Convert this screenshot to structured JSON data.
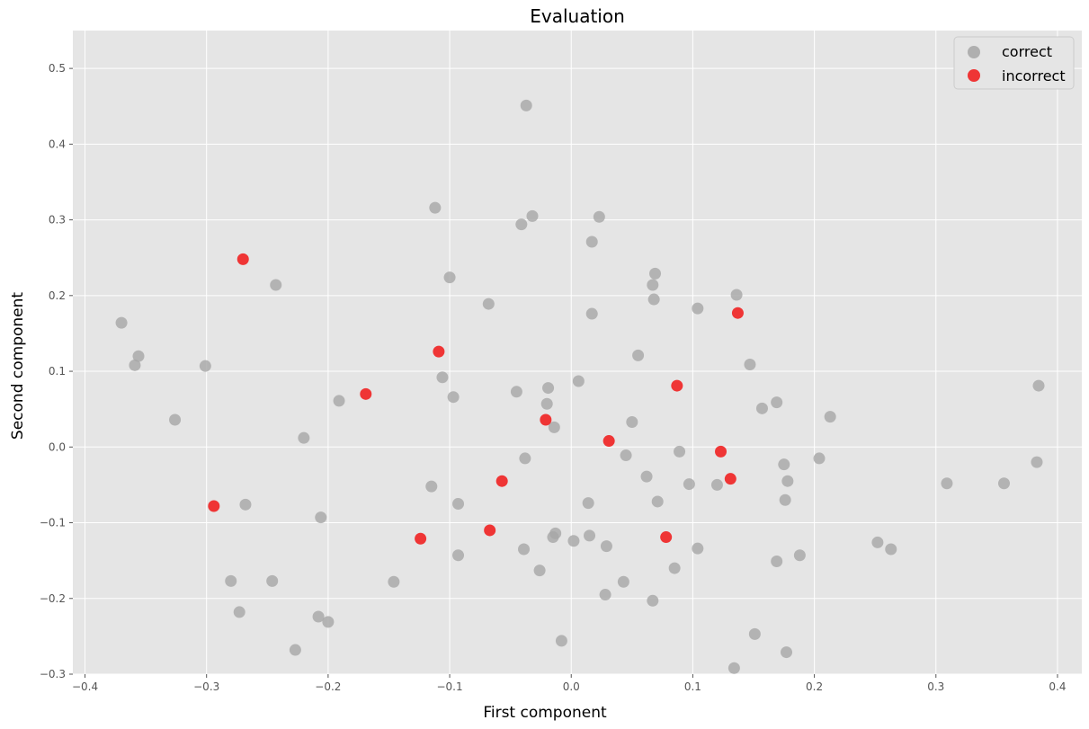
{
  "chart_data": {
    "type": "scatter",
    "title": "Evaluation",
    "xlabel": "First component",
    "ylabel": "Second component",
    "xlim": [
      -0.41,
      0.42
    ],
    "ylim": [
      -0.3,
      0.55
    ],
    "xticks": [
      -0.4,
      -0.3,
      -0.2,
      -0.1,
      0.0,
      0.1,
      0.2,
      0.3,
      0.4
    ],
    "xtick_labels": [
      "−0.4",
      "−0.3",
      "−0.2",
      "−0.1",
      "0.0",
      "0.1",
      "0.2",
      "0.3",
      "0.4"
    ],
    "yticks": [
      -0.3,
      -0.2,
      -0.1,
      0.0,
      0.1,
      0.2,
      0.3,
      0.4,
      0.5
    ],
    "ytick_labels": [
      "−0.3",
      "−0.2",
      "−0.1",
      "0.0",
      "0.1",
      "0.2",
      "0.3",
      "0.4",
      "0.5"
    ],
    "grid": true,
    "legend_position": "top-right",
    "background_color": "#e5e5e5",
    "series": [
      {
        "name": "correct",
        "color": "#a6a6a6",
        "points": [
          [
            -0.037,
            0.451
          ],
          [
            -0.112,
            0.316
          ],
          [
            -0.032,
            0.305
          ],
          [
            0.023,
            0.304
          ],
          [
            -0.041,
            0.294
          ],
          [
            0.017,
            0.271
          ],
          [
            0.069,
            0.229
          ],
          [
            -0.1,
            0.224
          ],
          [
            -0.243,
            0.214
          ],
          [
            0.067,
            0.214
          ],
          [
            0.136,
            0.201
          ],
          [
            0.068,
            0.195
          ],
          [
            -0.068,
            0.189
          ],
          [
            0.104,
            0.183
          ],
          [
            0.017,
            0.176
          ],
          [
            -0.37,
            0.164
          ],
          [
            -0.356,
            0.12
          ],
          [
            0.055,
            0.121
          ],
          [
            -0.359,
            0.108
          ],
          [
            -0.301,
            0.107
          ],
          [
            0.147,
            0.109
          ],
          [
            -0.106,
            0.092
          ],
          [
            0.006,
            0.087
          ],
          [
            -0.019,
            0.078
          ],
          [
            0.3845,
            0.081
          ],
          [
            -0.045,
            0.073
          ],
          [
            -0.097,
            0.066
          ],
          [
            -0.191,
            0.061
          ],
          [
            0.169,
            0.059
          ],
          [
            -0.02,
            0.057
          ],
          [
            0.157,
            0.051
          ],
          [
            0.213,
            0.04
          ],
          [
            -0.326,
            0.036
          ],
          [
            0.05,
            0.033
          ],
          [
            -0.014,
            0.026
          ],
          [
            -0.22,
            0.012
          ],
          [
            0.089,
            -0.006
          ],
          [
            0.045,
            -0.011
          ],
          [
            -0.038,
            -0.015
          ],
          [
            0.204,
            -0.015
          ],
          [
            0.383,
            -0.02
          ],
          [
            0.175,
            -0.023
          ],
          [
            0.062,
            -0.039
          ],
          [
            0.178,
            -0.045
          ],
          [
            0.309,
            -0.048
          ],
          [
            0.356,
            -0.048
          ],
          [
            0.097,
            -0.049
          ],
          [
            0.12,
            -0.05
          ],
          [
            -0.115,
            -0.052
          ],
          [
            0.071,
            -0.072
          ],
          [
            0.176,
            -0.07
          ],
          [
            0.014,
            -0.074
          ],
          [
            -0.093,
            -0.075
          ],
          [
            -0.268,
            -0.076
          ],
          [
            -0.206,
            -0.093
          ],
          [
            -0.013,
            -0.114
          ],
          [
            0.015,
            -0.117
          ],
          [
            -0.015,
            -0.119
          ],
          [
            0.002,
            -0.124
          ],
          [
            0.252,
            -0.126
          ],
          [
            0.029,
            -0.131
          ],
          [
            0.104,
            -0.134
          ],
          [
            0.263,
            -0.135
          ],
          [
            -0.039,
            -0.135
          ],
          [
            -0.093,
            -0.143
          ],
          [
            0.188,
            -0.143
          ],
          [
            0.169,
            -0.151
          ],
          [
            0.085,
            -0.16
          ],
          [
            -0.026,
            -0.163
          ],
          [
            -0.28,
            -0.177
          ],
          [
            -0.246,
            -0.177
          ],
          [
            -0.146,
            -0.178
          ],
          [
            0.043,
            -0.178
          ],
          [
            0.028,
            -0.195
          ],
          [
            0.067,
            -0.203
          ],
          [
            -0.273,
            -0.218
          ],
          [
            -0.208,
            -0.224
          ],
          [
            -0.2,
            -0.231
          ],
          [
            0.151,
            -0.247
          ],
          [
            -0.008,
            -0.256
          ],
          [
            -0.227,
            -0.268
          ],
          [
            0.177,
            -0.271
          ],
          [
            0.134,
            -0.292
          ]
        ]
      },
      {
        "name": "incorrect",
        "color": "#ef2b2b",
        "points": [
          [
            -0.27,
            0.248
          ],
          [
            0.137,
            0.177
          ],
          [
            -0.109,
            0.126
          ],
          [
            0.087,
            0.081
          ],
          [
            -0.169,
            0.07
          ],
          [
            -0.021,
            0.036
          ],
          [
            0.031,
            0.008
          ],
          [
            0.123,
            -0.006
          ],
          [
            0.131,
            -0.042
          ],
          [
            -0.057,
            -0.045
          ],
          [
            -0.294,
            -0.078
          ],
          [
            -0.067,
            -0.11
          ],
          [
            0.078,
            -0.119
          ],
          [
            -0.124,
            -0.121
          ]
        ]
      }
    ]
  }
}
